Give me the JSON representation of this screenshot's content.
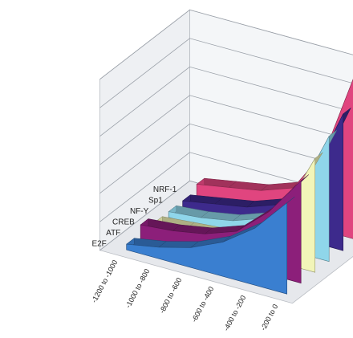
{
  "chart_data": {
    "type": "area",
    "subtype": "3d-ribbon",
    "categories": [
      "-1200 to -1000",
      "-1000 to -800",
      "-800 to -600",
      "-600 to -400",
      "-400 to -200",
      "-200 to 0"
    ],
    "series": [
      {
        "name": "NRF-1",
        "values": [
          4,
          6,
          8,
          12,
          28,
          60
        ],
        "color": "#e0457f"
      },
      {
        "name": "Sp1",
        "values": [
          2,
          4,
          6,
          10,
          22,
          48
        ],
        "color": "#3d2a8c"
      },
      {
        "name": "NF-Y",
        "values": [
          2,
          3,
          5,
          9,
          20,
          44
        ],
        "color": "#8fd6ea"
      },
      {
        "name": "CREB",
        "values": [
          2,
          3,
          4,
          8,
          18,
          40
        ],
        "color": "#f2f5b8"
      },
      {
        "name": "ATF",
        "values": [
          5,
          6,
          8,
          12,
          22,
          36
        ],
        "color": "#8c1f7a"
      },
      {
        "name": "E2F",
        "values": [
          2,
          4,
          7,
          12,
          20,
          32
        ],
        "color": "#3a7fd0"
      }
    ],
    "title": "",
    "xlabel": "",
    "ylabel": "",
    "zlim": [
      0,
      60
    ],
    "z_ticks": [
      "0",
      "10",
      "20",
      "30",
      "40",
      "50",
      "60"
    ],
    "grid": true,
    "legend": "none"
  }
}
